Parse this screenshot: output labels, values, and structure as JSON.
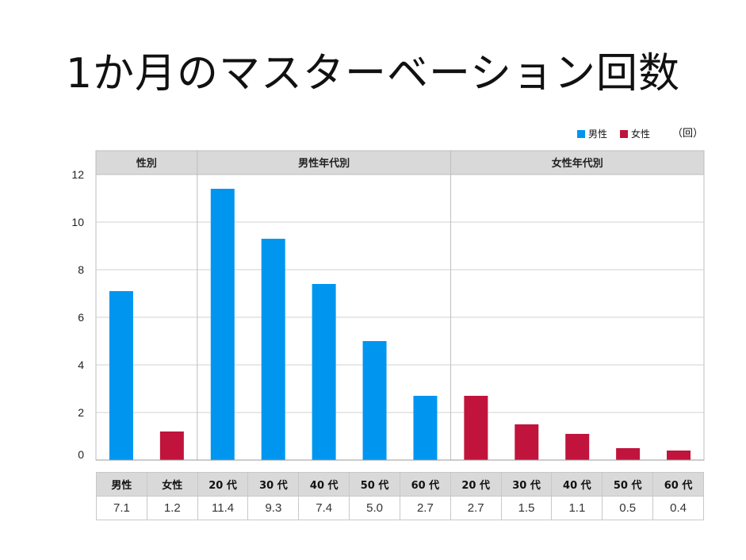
{
  "title": "1か月のマスターベーション回数",
  "legend": {
    "male": "男性",
    "female": "女性",
    "unit": "（回）"
  },
  "colors": {
    "male": "#0096f0",
    "female": "#c0143c",
    "header_bg": "#d9d9d9",
    "grid": "#d0d0d0"
  },
  "table": {
    "labels": [
      "男性",
      "女性",
      "20 代",
      "30 代",
      "40 代",
      "50 代",
      "60 代",
      "20 代",
      "30 代",
      "40 代",
      "50 代",
      "60 代"
    ],
    "values": [
      "7.1",
      "1.2",
      "11.4",
      "9.3",
      "7.4",
      "5.0",
      "2.7",
      "2.7",
      "1.5",
      "1.1",
      "0.5",
      "0.4"
    ]
  },
  "chart_data": {
    "type": "bar",
    "title": "1か月のマスターベーション回数",
    "ylabel": "（回）",
    "xlabel": "",
    "ylim": [
      0,
      12
    ],
    "yticks": [
      0,
      2,
      4,
      6,
      8,
      10,
      12
    ],
    "grid": true,
    "legend_position": "top-right",
    "groups": [
      {
        "label": "性別",
        "categories": [
          "男性",
          "女性"
        ]
      },
      {
        "label": "男性年代別",
        "categories": [
          "20 代",
          "30 代",
          "40 代",
          "50 代",
          "60 代"
        ]
      },
      {
        "label": "女性年代別",
        "categories": [
          "20 代",
          "30 代",
          "40 代",
          "50 代",
          "60 代"
        ]
      }
    ],
    "categories": [
      "男性",
      "女性",
      "20 代",
      "30 代",
      "40 代",
      "50 代",
      "60 代",
      "20 代",
      "30 代",
      "40 代",
      "50 代",
      "60 代"
    ],
    "series_of_bar": [
      "男性",
      "女性",
      "男性",
      "男性",
      "男性",
      "男性",
      "男性",
      "女性",
      "女性",
      "女性",
      "女性",
      "女性"
    ],
    "values": [
      7.1,
      1.2,
      11.4,
      9.3,
      7.4,
      5.0,
      2.7,
      2.7,
      1.5,
      1.1,
      0.5,
      0.4
    ],
    "series": [
      {
        "name": "男性",
        "values": [
          7.1,
          null,
          11.4,
          9.3,
          7.4,
          5.0,
          2.7,
          null,
          null,
          null,
          null,
          null
        ]
      },
      {
        "name": "女性",
        "values": [
          null,
          1.2,
          null,
          null,
          null,
          null,
          null,
          2.7,
          1.5,
          1.1,
          0.5,
          0.4
        ]
      }
    ]
  }
}
